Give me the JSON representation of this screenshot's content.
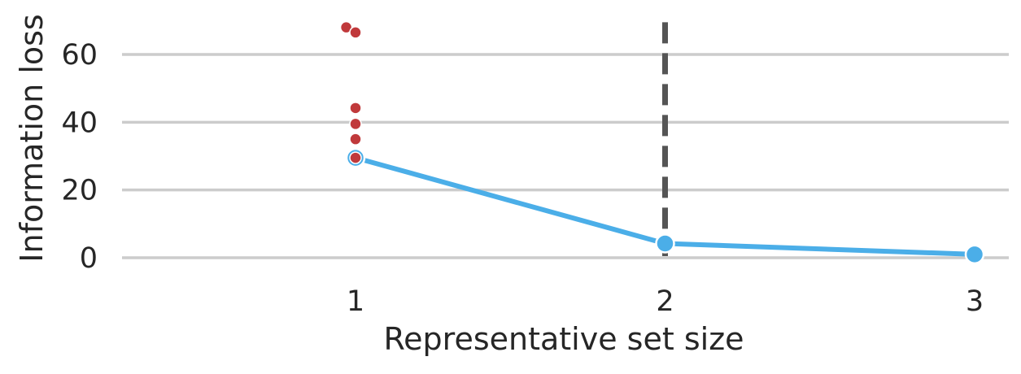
{
  "chart_data": {
    "type": "line",
    "title": "",
    "xlabel": "Representative set size",
    "ylabel": "Information loss",
    "x_ticks": [
      1,
      2,
      3
    ],
    "y_ticks": [
      0,
      20,
      40,
      60
    ],
    "xlim": [
      0.25,
      3.1
    ],
    "ylim": [
      -3,
      71
    ],
    "grid": {
      "y": true,
      "x": false
    },
    "series": [
      {
        "type": "line",
        "color": "#4baee8",
        "points": [
          {
            "x": 1,
            "y": 29.5
          },
          {
            "x": 2,
            "y": 4.2
          },
          {
            "x": 3,
            "y": 1.0
          }
        ]
      },
      {
        "type": "scatter",
        "color": "#c0393b",
        "points": [
          {
            "x": 0.97,
            "y": 68
          },
          {
            "x": 1.0,
            "y": 66.5
          },
          {
            "x": 1.0,
            "y": 44.2
          },
          {
            "x": 1.0,
            "y": 39.5
          },
          {
            "x": 1.0,
            "y": 35.0
          },
          {
            "x": 1.0,
            "y": 29.5
          }
        ]
      }
    ],
    "reference_line": {
      "orientation": "vertical",
      "x": 2,
      "style": "dashed",
      "color": "#555555",
      "y_top": 69.5
    }
  }
}
